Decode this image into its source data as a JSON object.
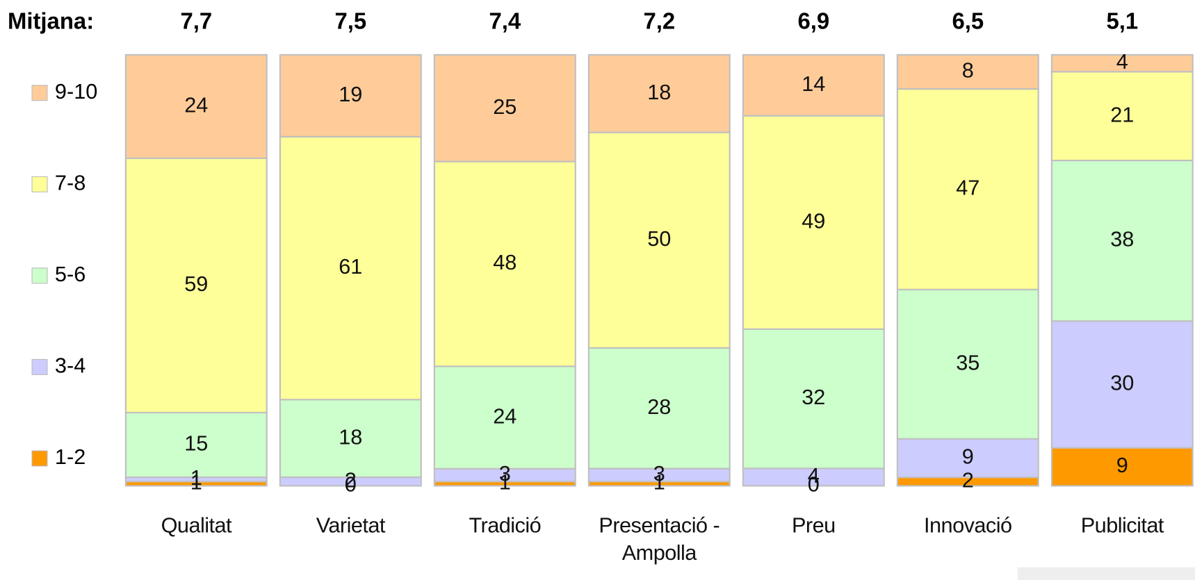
{
  "chart_data": {
    "type": "bar",
    "stacked": "percent",
    "mean_label": "Mitjana:",
    "means": [
      "7,7",
      "7,5",
      "7,4",
      "7,2",
      "6,9",
      "6,5",
      "5,1"
    ],
    "categories": [
      "Qualitat",
      "Varietat",
      "Tradició",
      "Presentació - Ampolla",
      "Preu",
      "Innovació",
      "Publicitat"
    ],
    "series": [
      {
        "name": "1-2",
        "color": "#ff9900",
        "values": [
          1,
          0,
          1,
          1,
          0,
          2,
          9
        ]
      },
      {
        "name": "3-4",
        "color": "#ccccff",
        "values": [
          1,
          2,
          3,
          3,
          4,
          9,
          30
        ]
      },
      {
        "name": "5-6",
        "color": "#ccffcc",
        "values": [
          15,
          18,
          24,
          28,
          32,
          35,
          38
        ]
      },
      {
        "name": "7-8",
        "color": "#ffff99",
        "values": [
          59,
          61,
          48,
          50,
          49,
          47,
          21
        ]
      },
      {
        "name": "9-10",
        "color": "#ffcc99",
        "values": [
          24,
          19,
          25,
          18,
          14,
          8,
          4
        ]
      }
    ]
  }
}
